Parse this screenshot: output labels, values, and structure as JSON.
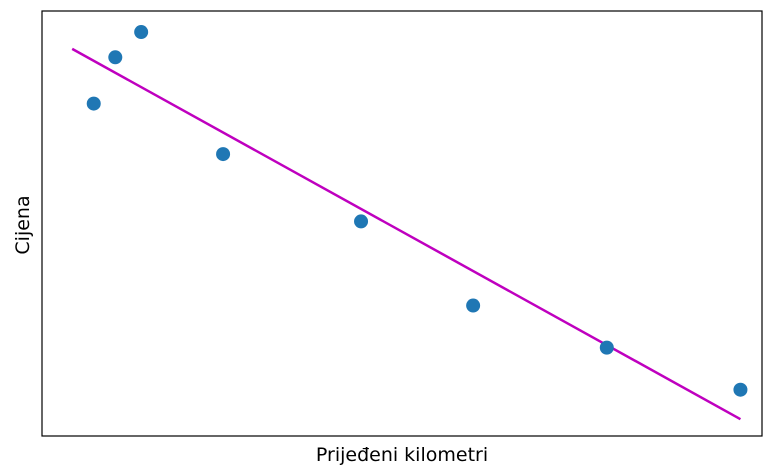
{
  "chart_data": {
    "type": "scatter",
    "title": "",
    "xlabel": "Prijeđeni kilometri",
    "ylabel": "Cijena",
    "xlim": [
      0,
      16.7
    ],
    "ylim": [
      0,
      10.1
    ],
    "x_ticks_shown": false,
    "y_ticks_shown": false,
    "grid": false,
    "legend": "none",
    "series": [
      {
        "kind": "points",
        "color": "#1f77b4",
        "x": [
          1.2,
          1.7,
          2.3,
          4.2,
          7.4,
          10.0,
          13.1,
          16.2
        ],
        "y": [
          7.9,
          9.0,
          9.6,
          6.7,
          5.1,
          3.1,
          2.1,
          1.1
        ]
      },
      {
        "kind": "fit-line",
        "color": "#bf00bf",
        "x": [
          0.7,
          16.2
        ],
        "y": [
          9.2,
          0.4
        ]
      }
    ]
  }
}
